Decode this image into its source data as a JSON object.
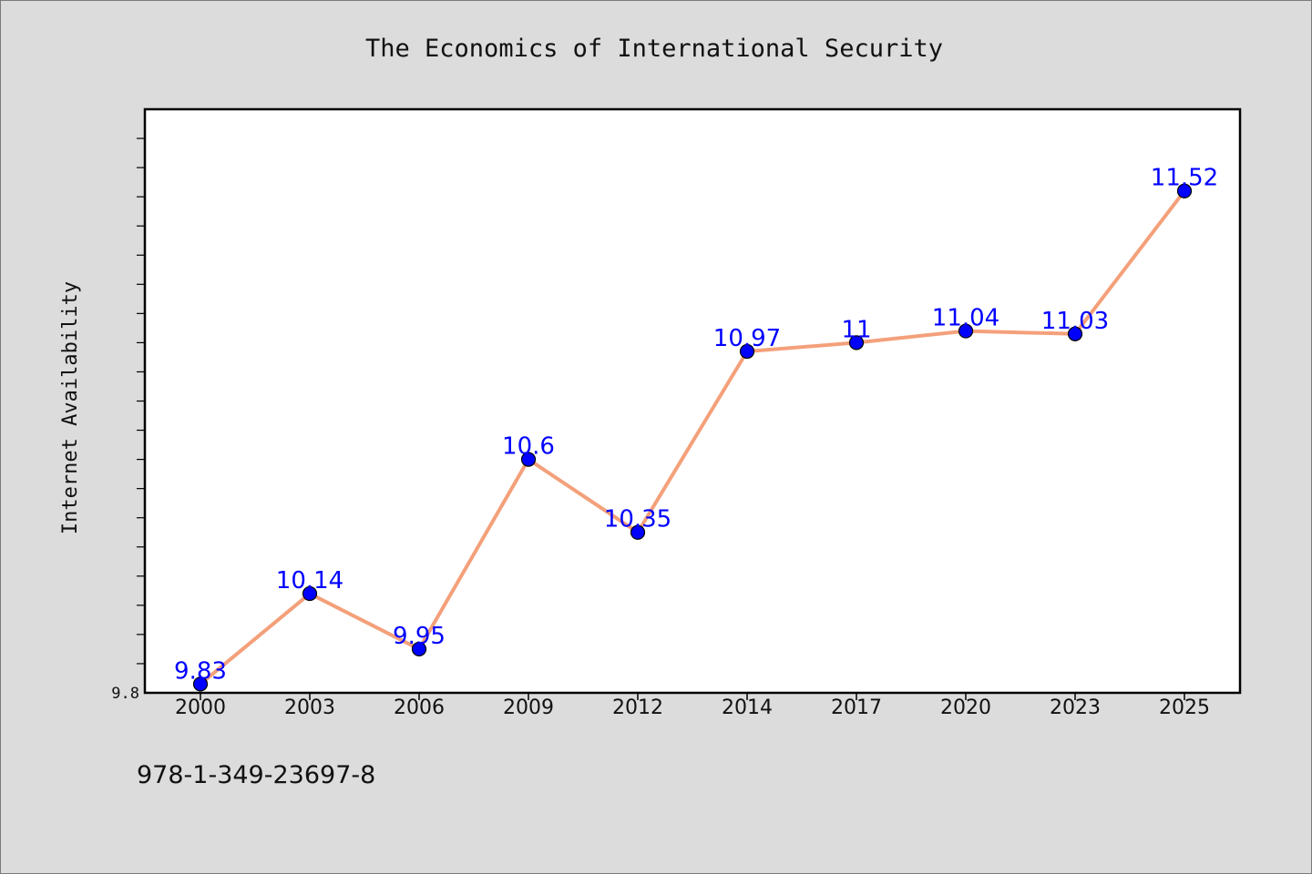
{
  "chart_data": {
    "type": "line",
    "title": "The Economics of International Security",
    "xlabel": "",
    "ylabel": "Internet Availability",
    "categories": [
      "2000",
      "2003",
      "2006",
      "2009",
      "2012",
      "2014",
      "2017",
      "2020",
      "2023",
      "2025"
    ],
    "series": [
      {
        "values": [
          9.83,
          10.14,
          9.95,
          10.6,
          10.35,
          10.97,
          11,
          11.04,
          11.03,
          11.52
        ],
        "labels": [
          "9.83",
          "10.14",
          "9.95",
          "10.6",
          "10.35",
          "10.97",
          "11",
          "11.04",
          "11.03",
          "11.52"
        ],
        "line_color": "#f4a07a",
        "marker_color": "#0000ff"
      }
    ],
    "ylim": [
      9.8,
      11.8
    ],
    "y_tick_labels": [
      "9.8"
    ],
    "grid": false,
    "legend": "none",
    "plot_background": "#ffffff",
    "page_background": "#dcdcdc"
  },
  "footer": {
    "isbn": "978-1-349-23697-8"
  }
}
